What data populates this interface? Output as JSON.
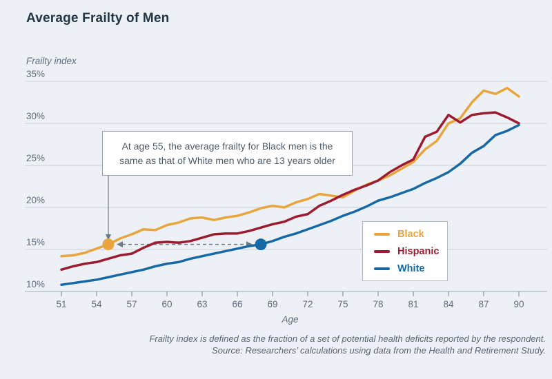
{
  "title": "Average Frailty of Men",
  "annotation": {
    "line1": "At age 55, the average frailty for Black men is the",
    "line2": "same as that of White men who are 13 years older"
  },
  "legend": {
    "items": [
      {
        "label": "Black",
        "color": "#e8a53d"
      },
      {
        "label": "Hispanic",
        "color": "#9c1b30"
      },
      {
        "label": "White",
        "color": "#1769a5"
      }
    ]
  },
  "footnotes": {
    "line1": "Frailty index is defined as the fraction of a set of potential health deficits reported by the respondent.",
    "line2": "Source: Researchers’ calculations using data from the Health and Retirement Study."
  },
  "chart_data": {
    "type": "line",
    "title": "Average Frailty of Men",
    "xlabel": "Age",
    "ylabel": "Frailty index",
    "xlim": [
      51,
      90
    ],
    "ylim": [
      10,
      35
    ],
    "x_ticks": [
      51,
      54,
      57,
      60,
      63,
      66,
      69,
      72,
      75,
      78,
      81,
      84,
      87,
      90
    ],
    "y_ticks": [
      10,
      15,
      20,
      25,
      30,
      35
    ],
    "y_tick_suffix": "%",
    "grid": "horizontal",
    "legend_position": "inside-right",
    "x": [
      51,
      52,
      53,
      54,
      55,
      56,
      57,
      58,
      59,
      60,
      61,
      62,
      63,
      64,
      65,
      66,
      67,
      68,
      69,
      70,
      71,
      72,
      73,
      74,
      75,
      76,
      77,
      78,
      79,
      80,
      81,
      82,
      83,
      84,
      85,
      86,
      87,
      88,
      89,
      90
    ],
    "series": [
      {
        "name": "Black",
        "color": "#e8a53d",
        "values": [
          14.2,
          14.3,
          14.6,
          15.1,
          15.6,
          16.3,
          16.8,
          17.4,
          17.3,
          17.9,
          18.2,
          18.7,
          18.8,
          18.5,
          18.8,
          19.0,
          19.4,
          19.9,
          20.2,
          20.0,
          20.6,
          21.0,
          21.6,
          21.4,
          21.2,
          22.0,
          22.7,
          23.2,
          23.8,
          24.6,
          25.4,
          26.9,
          27.9,
          30.0,
          30.6,
          32.5,
          33.9,
          33.5,
          34.2,
          33.2
        ]
      },
      {
        "name": "Hispanic",
        "color": "#9c1b30",
        "values": [
          12.6,
          13.0,
          13.3,
          13.5,
          13.9,
          14.3,
          14.5,
          15.2,
          15.8,
          15.9,
          15.8,
          16.0,
          16.4,
          16.8,
          16.9,
          16.9,
          17.2,
          17.6,
          18.0,
          18.3,
          18.9,
          19.2,
          20.2,
          20.8,
          21.5,
          22.1,
          22.6,
          23.2,
          24.2,
          25.0,
          25.7,
          28.4,
          29.0,
          31.0,
          30.1,
          31.0,
          31.2,
          31.3,
          30.7,
          30.0
        ]
      },
      {
        "name": "White",
        "color": "#1769a5",
        "values": [
          10.8,
          11.0,
          11.2,
          11.4,
          11.7,
          12.0,
          12.3,
          12.6,
          13.0,
          13.3,
          13.5,
          13.9,
          14.2,
          14.5,
          14.8,
          15.1,
          15.4,
          15.6,
          16.0,
          16.5,
          16.9,
          17.4,
          17.9,
          18.4,
          19.0,
          19.5,
          20.1,
          20.8,
          21.2,
          21.7,
          22.2,
          22.9,
          23.5,
          24.2,
          25.2,
          26.5,
          27.3,
          28.6,
          29.1,
          29.8
        ]
      }
    ],
    "markers": [
      {
        "series": "Black",
        "age": 55,
        "value": 15.6,
        "color": "#e8a53d"
      },
      {
        "series": "White",
        "age": 68,
        "value": 15.6,
        "color": "#1769a5"
      }
    ],
    "annotation_arrow": {
      "from_age": 55,
      "connector": "dashed-double-arrow"
    },
    "colors": {
      "background": "#edf1f6",
      "gridline": "#cbd3db",
      "axis_line": "#9faab4",
      "tick_mark": "#77828d",
      "tick_label": "#5d6c7b",
      "arrow": "#6f7b86"
    }
  }
}
